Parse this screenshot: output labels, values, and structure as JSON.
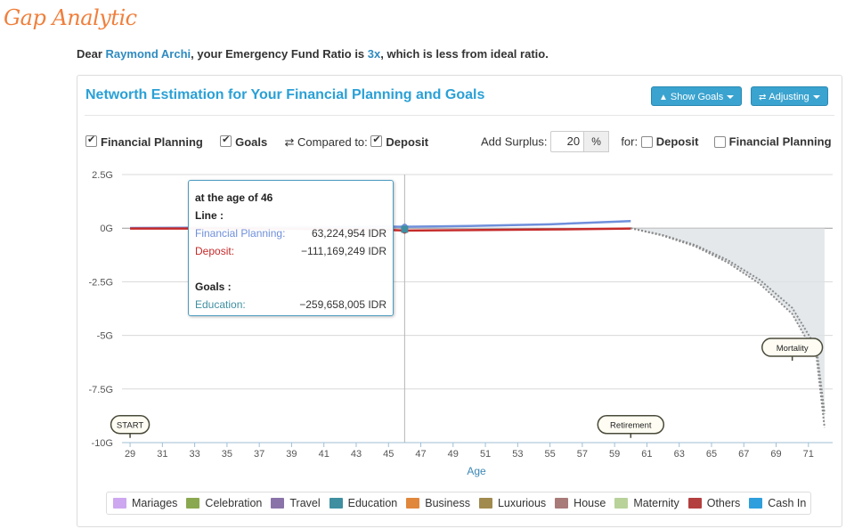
{
  "logo": "Gap Analytic",
  "intro": {
    "prefix": "Dear ",
    "name": "Raymond Archi",
    "middle": ", your Emergency Fund Ratio is ",
    "ratio": "3x",
    "suffix": ", which is less from ideal ratio."
  },
  "panel": {
    "title": "Networth Estimation for Your Financial Planning and Goals",
    "show_goals_label": "Show Goals",
    "adjusting_label": "Adjusting"
  },
  "options": {
    "financial_planning": {
      "label": "Financial Planning",
      "checked": true
    },
    "goals": {
      "label": "Goals",
      "checked": true
    },
    "compared_to_label": "Compared to:",
    "deposit": {
      "label": "Deposit",
      "checked": true
    },
    "add_surplus_label": "Add Surplus:",
    "surplus_value": "20",
    "surplus_unit": "%",
    "for_label": "for:",
    "for_deposit": {
      "label": "Deposit",
      "checked": false
    },
    "for_financial_planning": {
      "label": "Financial Planning",
      "checked": false
    }
  },
  "tooltip": {
    "header": "at the age of 46",
    "line_label": "Line :",
    "financial_planning_label": "Financial Planning:",
    "financial_planning_value": "63,224,954 IDR",
    "deposit_label": "Deposit:",
    "deposit_value": "−111,169,249 IDR",
    "goals_label": "Goals :",
    "education_label": "Education:",
    "education_value": "−259,658,005 IDR"
  },
  "chart_data": {
    "type": "line",
    "xlabel": "Age",
    "ylabel": "",
    "xlim": [
      28.5,
      72.5
    ],
    "ylim": [
      -10,
      2.5
    ],
    "x_ticks": [
      29,
      31,
      33,
      35,
      37,
      39,
      41,
      43,
      45,
      47,
      49,
      51,
      53,
      55,
      57,
      59,
      61,
      63,
      65,
      67,
      69,
      71
    ],
    "y_ticks": [
      2.5,
      0,
      -2.5,
      -5,
      -7.5,
      -10
    ],
    "y_tick_labels": [
      "2.5G",
      "0G",
      "-2.5G",
      "-5G",
      "-7.5G",
      "-10G"
    ],
    "crosshair_age": 46,
    "series": [
      {
        "name": "Financial Planning",
        "color": "#6f8fdb",
        "points": [
          [
            29,
            0.01
          ],
          [
            35,
            0.03
          ],
          [
            41,
            0.05
          ],
          [
            45,
            0.07
          ],
          [
            46,
            0.063
          ],
          [
            50,
            0.1
          ],
          [
            55,
            0.18
          ],
          [
            60,
            0.33
          ]
        ]
      },
      {
        "name": "Deposit",
        "color": "#c62a2a",
        "points": [
          [
            29,
            -0.02
          ],
          [
            35,
            -0.02
          ],
          [
            41,
            -0.04
          ],
          [
            45,
            -0.08
          ],
          [
            46,
            -0.111
          ],
          [
            50,
            -0.09
          ],
          [
            55,
            -0.06
          ],
          [
            60,
            -0.02
          ]
        ]
      }
    ],
    "band": {
      "color": "#dde2e6",
      "upper": [
        [
          60,
          0
        ],
        [
          72,
          0
        ]
      ],
      "lower": [
        [
          60,
          0
        ],
        [
          62,
          -0.35
        ],
        [
          64,
          -0.85
        ],
        [
          66,
          -1.6
        ],
        [
          68,
          -2.6
        ],
        [
          70,
          -4.0
        ],
        [
          71.5,
          -6.0
        ],
        [
          72,
          -9.3
        ]
      ]
    },
    "markers": [
      {
        "label": "START",
        "x": 29,
        "y": -9.2
      },
      {
        "label": "Retirement",
        "x": 60,
        "y": -9.2
      },
      {
        "label": "Mortality",
        "x": 70,
        "y": -5.6
      }
    ]
  },
  "legend": [
    {
      "label": "Mariages",
      "color": "#cda7ef"
    },
    {
      "label": "Celebration",
      "color": "#8aa84f"
    },
    {
      "label": "Travel",
      "color": "#8a73a8"
    },
    {
      "label": "Education",
      "color": "#3f8fa1"
    },
    {
      "label": "Business",
      "color": "#e0873c"
    },
    {
      "label": "Luxurious",
      "color": "#a08a4e"
    },
    {
      "label": "House",
      "color": "#a87a78"
    },
    {
      "label": "Maternity",
      "color": "#b8d29a"
    },
    {
      "label": "Others",
      "color": "#b43f3f"
    },
    {
      "label": "Cash In",
      "color": "#2e9fdc"
    }
  ]
}
